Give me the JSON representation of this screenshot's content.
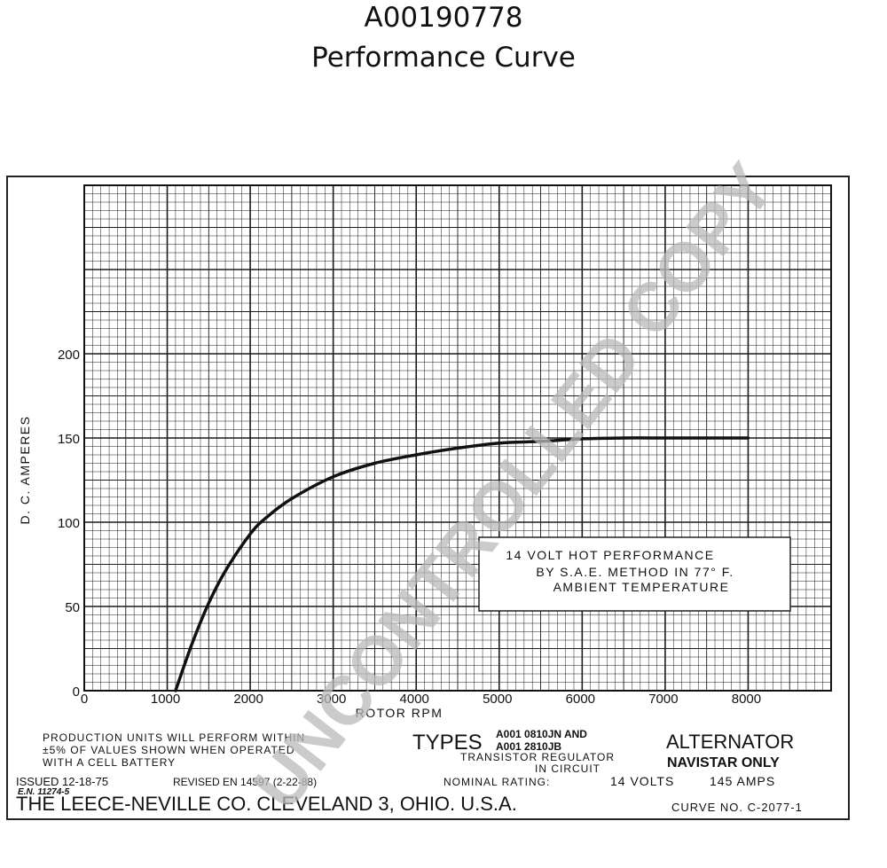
{
  "header": {
    "part_number": "A00190778",
    "subtitle": "Performance Curve"
  },
  "chart_data": {
    "type": "line",
    "title": "",
    "xlabel": "ROTOR RPM",
    "ylabel": "D. C. AMPERES",
    "xlim": [
      0,
      9000
    ],
    "ylim": [
      0,
      300
    ],
    "x_ticks": [
      0,
      1000,
      2000,
      3000,
      4000,
      5000,
      6000,
      7000,
      8000
    ],
    "y_ticks": [
      0,
      50,
      100,
      150,
      200
    ],
    "grid": true,
    "series": [
      {
        "x": [
          1100,
          1300,
          1500,
          1700,
          2000,
          2200,
          2500,
          3000,
          3500,
          4000,
          4500,
          5000,
          5500,
          6000,
          6500,
          7000,
          7500,
          8000
        ],
        "y": [
          0,
          28,
          52,
          71,
          93,
          103,
          114,
          127,
          135,
          140,
          144,
          147,
          148,
          149.5,
          150,
          150,
          150,
          150
        ]
      }
    ],
    "annotation": [
      "14 VOLT HOT PERFORMANCE",
      "BY S.A.E. METHOD IN 77° F.",
      "AMBIENT TEMPERATURE"
    ]
  },
  "footer": {
    "production_note": [
      "PRODUCTION UNITS WILL PERFORM WITHIN",
      "±5% OF VALUES SHOWN WHEN OPERATED",
      "WITH A CELL BATTERY"
    ],
    "types_label": "TYPES",
    "type_codes": [
      "A001 0810JN AND",
      "A001 2810JB"
    ],
    "regulator_lines": [
      "TRANSISTOR REGULATOR",
      "IN CIRCUIT"
    ],
    "alternator": "ALTERNATOR",
    "navistar": "NAVISTAR ONLY",
    "issued": "ISSUED 12-18-75",
    "en": "E.N. 11274-5",
    "revised": "REVISED EN 14597 (2-22-88)",
    "rating_label": "NOMINAL RATING:",
    "volts": "14 VOLTS",
    "amps": "145 AMPS",
    "company": "THE LEECE-NEVILLE CO. CLEVELAND 3, OHIO. U.S.A.",
    "curve_no": "CURVE NO. C-2077-1"
  },
  "watermark": "UNCONTROLLED COPY"
}
